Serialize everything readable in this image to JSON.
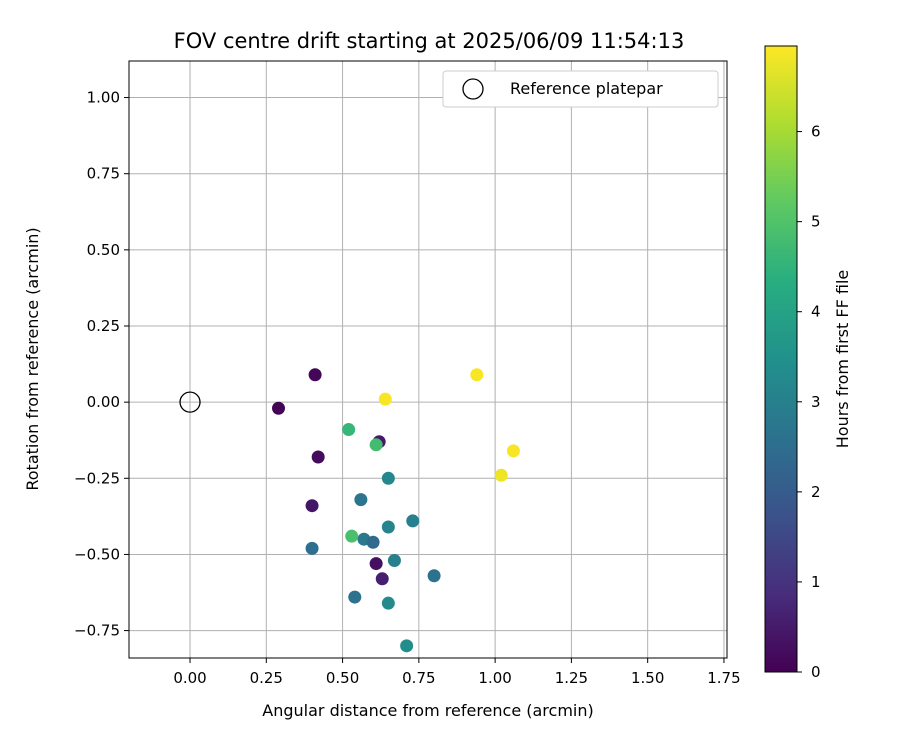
{
  "chart_data": {
    "type": "scatter",
    "title": "FOV centre drift starting at 2025/06/09 11:54:13",
    "xlabel": "Angular distance from reference (arcmin)",
    "ylabel": "Rotation from reference (arcmin)",
    "xlim": [
      -0.2,
      1.76
    ],
    "ylim": [
      -0.84,
      1.12
    ],
    "xticks": [
      "0.00",
      "0.25",
      "0.50",
      "0.75",
      "1.00",
      "1.25",
      "1.50",
      "1.75"
    ],
    "yticks": [
      "1.00",
      "0.75",
      "0.50",
      "0.25",
      "0.00",
      "−0.25",
      "−0.50",
      "−0.75"
    ],
    "grid": true,
    "legend": {
      "position": "top-right",
      "entries": [
        "Reference platepar"
      ]
    },
    "reference_point": {
      "x": 0.0,
      "y": 0.0,
      "marker": "open-circle"
    },
    "colorbar": {
      "label": "Hours from first FF file",
      "colormap": "viridis",
      "range": [
        0,
        6.95
      ],
      "ticks": [
        "0",
        "1",
        "2",
        "3",
        "4",
        "5",
        "6"
      ]
    },
    "points": [
      {
        "x": 0.29,
        "y": -0.02,
        "hours": 0.05
      },
      {
        "x": 0.41,
        "y": 0.09,
        "hours": 0.1
      },
      {
        "x": 0.42,
        "y": -0.18,
        "hours": 0.2
      },
      {
        "x": 0.4,
        "y": -0.34,
        "hours": 0.4
      },
      {
        "x": 0.62,
        "y": -0.13,
        "hours": 0.5
      },
      {
        "x": 0.61,
        "y": -0.53,
        "hours": 0.3
      },
      {
        "x": 0.63,
        "y": -0.58,
        "hours": 0.6
      },
      {
        "x": 0.4,
        "y": -0.48,
        "hours": 2.5
      },
      {
        "x": 0.56,
        "y": -0.32,
        "hours": 2.7
      },
      {
        "x": 0.57,
        "y": -0.45,
        "hours": 2.8
      },
      {
        "x": 0.6,
        "y": -0.46,
        "hours": 2.4
      },
      {
        "x": 0.54,
        "y": -0.64,
        "hours": 2.6
      },
      {
        "x": 0.65,
        "y": -0.25,
        "hours": 3.2
      },
      {
        "x": 0.65,
        "y": -0.41,
        "hours": 3.1
      },
      {
        "x": 0.67,
        "y": -0.52,
        "hours": 3.0
      },
      {
        "x": 0.73,
        "y": -0.39,
        "hours": 3.0
      },
      {
        "x": 0.8,
        "y": -0.57,
        "hours": 2.6
      },
      {
        "x": 0.65,
        "y": -0.66,
        "hours": 3.3
      },
      {
        "x": 0.71,
        "y": -0.8,
        "hours": 3.4
      },
      {
        "x": 0.52,
        "y": -0.09,
        "hours": 4.6
      },
      {
        "x": 0.61,
        "y": -0.14,
        "hours": 4.8
      },
      {
        "x": 0.53,
        "y": -0.44,
        "hours": 4.9
      },
      {
        "x": 0.64,
        "y": 0.01,
        "hours": 6.9
      },
      {
        "x": 0.94,
        "y": 0.09,
        "hours": 6.9
      },
      {
        "x": 1.06,
        "y": -0.16,
        "hours": 6.9
      },
      {
        "x": 1.02,
        "y": -0.24,
        "hours": 6.8
      }
    ]
  }
}
